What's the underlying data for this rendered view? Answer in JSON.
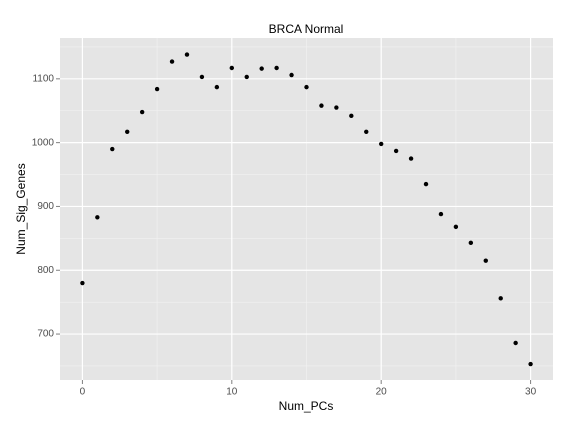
{
  "chart_data": {
    "type": "scatter",
    "title": "BRCA Normal",
    "x_label": "Num_PCs",
    "y_label": "Num_Sig_Genes",
    "x": [
      0,
      1,
      2,
      3,
      4,
      5,
      6,
      7,
      8,
      9,
      10,
      11,
      12,
      13,
      14,
      15,
      16,
      17,
      18,
      19,
      20,
      21,
      22,
      23,
      24,
      25,
      26,
      27,
      28,
      29,
      30
    ],
    "values": [
      780,
      883,
      990,
      1017,
      1048,
      1084,
      1127,
      1138,
      1103,
      1087,
      1117,
      1103,
      1116,
      1117,
      1106,
      1087,
      1058,
      1055,
      1042,
      1017,
      998,
      987,
      975,
      935,
      888,
      868,
      843,
      815,
      756,
      686,
      653
    ],
    "color": "#000000",
    "xlim": [
      -1.5,
      31.5
    ],
    "xticks": [
      0,
      10,
      20,
      30
    ],
    "ylim": [
      628,
      1164
    ],
    "yticks": [
      700,
      800,
      900,
      1000,
      1100
    ],
    "grid": true
  }
}
